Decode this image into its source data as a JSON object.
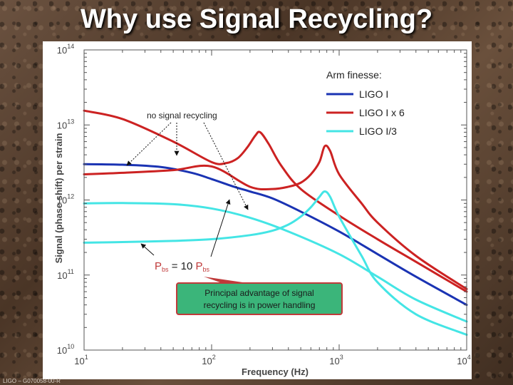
{
  "slide": {
    "title": "Why use Signal Recycling?",
    "footer": "LIGO – G070058-00-R"
  },
  "chart_data": {
    "type": "line",
    "xlabel": "Frequency (Hz)",
    "ylabel": "Signal (phase shift) per strain",
    "xscale": "log",
    "yscale": "log",
    "xlim": [
      10,
      10000
    ],
    "ylim": [
      10000000000,
      100000000000000
    ],
    "x_tick_labels": [
      {
        "base": "10",
        "exp": "1"
      },
      {
        "base": "10",
        "exp": "2"
      },
      {
        "base": "10",
        "exp": "3"
      },
      {
        "base": "10",
        "exp": "4"
      }
    ],
    "y_tick_labels": [
      {
        "base": "10",
        "exp": "10"
      },
      {
        "base": "10",
        "exp": "11"
      },
      {
        "base": "10",
        "exp": "12"
      },
      {
        "base": "10",
        "exp": "13"
      },
      {
        "base": "10",
        "exp": "14"
      }
    ],
    "legend_title": "Arm finesse:",
    "legend_placement": "top-right",
    "series": [
      {
        "name": "LIGO I",
        "color": "#1a33b3",
        "x": [
          10,
          20,
          40,
          70,
          100,
          150,
          200,
          300,
          500,
          1000,
          2000,
          4000,
          10000
        ],
        "y": [
          3000000000000,
          2950000000000,
          2750000000000,
          2300000000000,
          1900000000000,
          1500000000000,
          1300000000000,
          1050000000000,
          700000000000,
          380000000000,
          190000000000,
          95000000000,
          40000000000
        ]
      },
      {
        "name": "LIGO I x 6",
        "color": "#cc2222",
        "x": [
          10,
          20,
          50,
          100,
          130,
          160,
          190,
          220,
          240,
          280,
          350,
          500,
          1000,
          2000,
          4000,
          10000
        ],
        "y": [
          15500000000000,
          12000000000000,
          6000000000000,
          3200000000000,
          3100000000000,
          3600000000000,
          5000000000000,
          7200000000000,
          8000000000000,
          5600000000000,
          2900000000000,
          1400000000000,
          620000000000,
          300000000000,
          150000000000,
          60000000000
        ]
      },
      {
        "name": "LIGO I x 6",
        "color": "#cc2222",
        "x": [
          10,
          20,
          50,
          100,
          200,
          300,
          400,
          500,
          600,
          700,
          770,
          850,
          1000,
          1500,
          2000,
          4000,
          10000
        ],
        "y": [
          2200000000000,
          2300000000000,
          2500000000000,
          2800000000000,
          1500000000000,
          1400000000000,
          1500000000000,
          1700000000000,
          2200000000000,
          3200000000000,
          5200000000000,
          4500000000000,
          2200000000000,
          900000000000,
          500000000000,
          180000000000,
          65000000000
        ]
      },
      {
        "name": "LIGO I/3",
        "color": "#44e5e5",
        "x": [
          10,
          20,
          50,
          100,
          200,
          400,
          1000,
          2000,
          4000,
          10000
        ],
        "y": [
          900000000000,
          910000000000,
          880000000000,
          770000000000,
          580000000000,
          380000000000,
          190000000000,
          95000000000,
          47000000000,
          24000000000
        ]
      },
      {
        "name": "LIGO I/3",
        "color": "#44e5e5",
        "x": [
          10,
          20,
          50,
          100,
          200,
          300,
          400,
          500,
          600,
          700,
          770,
          850,
          1000,
          1500,
          2000,
          4000,
          10000
        ],
        "y": [
          270000000000,
          275000000000,
          285000000000,
          300000000000,
          340000000000,
          390000000000,
          470000000000,
          600000000000,
          800000000000,
          1100000000000,
          1300000000000,
          1100000000000,
          600000000000,
          180000000000,
          80000000000,
          30000000000,
          16000000000
        ]
      }
    ],
    "legend": [
      {
        "label": "LIGO I",
        "color": "#1a33b3"
      },
      {
        "label": "LIGO I x 6",
        "color": "#cc2222"
      },
      {
        "label": "LIGO I/3",
        "color": "#44e5e5"
      }
    ],
    "annotations": {
      "no_recycling": "no signal recycling",
      "power_equation": {
        "p1": "P",
        "sub1": "bs",
        "eq": " = 10 ",
        "p2": "P",
        "sub2": "bs"
      },
      "callout": {
        "line1": "Principal advantage of signal",
        "line2": "recycling is in power handling",
        "fill": "#3bb57a",
        "border": "#c03a3a"
      }
    }
  }
}
